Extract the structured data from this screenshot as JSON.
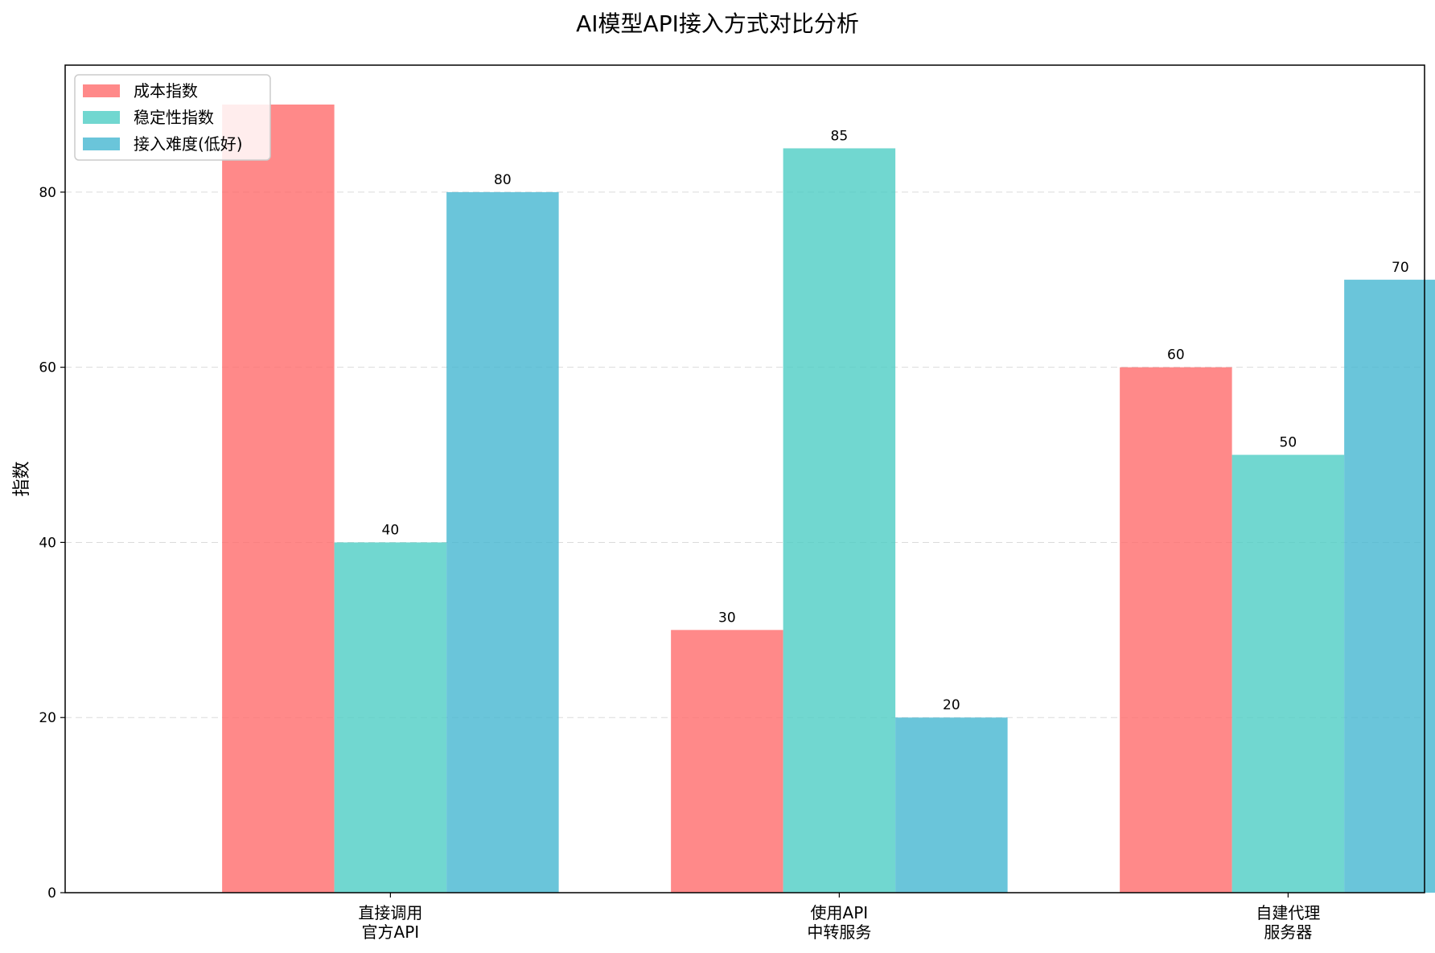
{
  "chart_data": {
    "type": "bar",
    "title": "AI模型API接入方式对比分析",
    "xlabel": "",
    "ylabel": "指数",
    "categories": [
      [
        "直接调用",
        "官方API"
      ],
      [
        "使用API",
        "中转服务"
      ],
      [
        "自建代理",
        "服务器"
      ]
    ],
    "series": [
      {
        "name": "成本指数",
        "color": "#FF6B6B",
        "values": [
          90,
          30,
          60
        ]
      },
      {
        "name": "稳定性指数",
        "color": "#4ECDC4",
        "values": [
          40,
          85,
          50
        ]
      },
      {
        "name": "接入难度(低好)",
        "color": "#45B7D1",
        "values": [
          80,
          20,
          70
        ]
      }
    ],
    "data_labels": [
      [
        null,
        "30",
        "60"
      ],
      [
        "40",
        "85",
        "50"
      ],
      [
        "80",
        "20",
        "70"
      ]
    ],
    "ylim": [
      0,
      94.5
    ],
    "yticks": [
      0,
      20,
      40,
      60,
      80
    ],
    "grid": "y-dashed",
    "legend_position": "upper-left",
    "bar_opacity": 0.8
  }
}
